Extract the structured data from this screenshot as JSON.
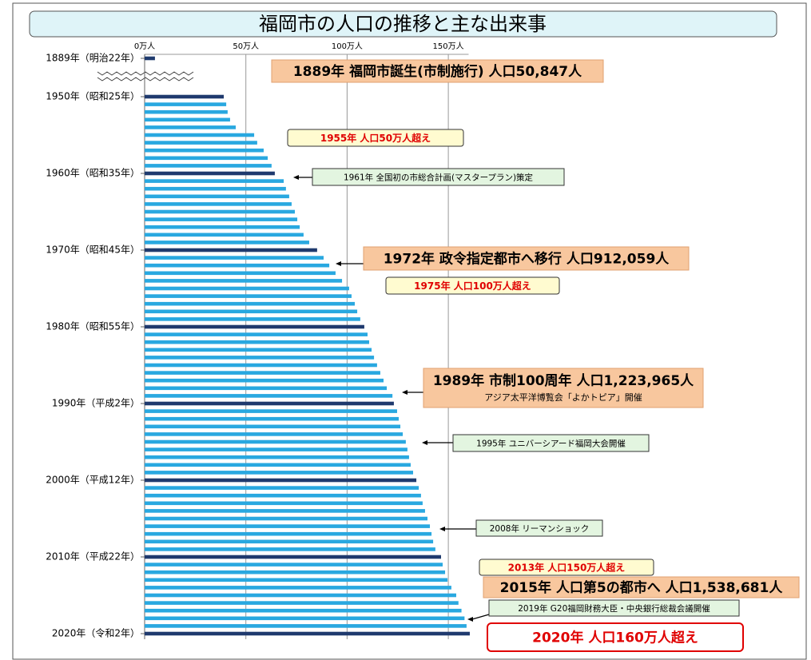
{
  "chart_data": {
    "type": "bar",
    "orientation": "horizontal",
    "title": "福岡市の人口の推移と主な出来事",
    "categories": [
      "1889年（明治22年）",
      "1950年（昭和25年）",
      null,
      null,
      null,
      null,
      null,
      null,
      null,
      null,
      null,
      "1960年（昭和35年）",
      null,
      null,
      null,
      null,
      null,
      null,
      null,
      null,
      null,
      "1970年（昭和45年）",
      null,
      null,
      null,
      null,
      null,
      null,
      null,
      null,
      null,
      "1980年（昭和55年）",
      null,
      null,
      null,
      null,
      null,
      null,
      null,
      null,
      null,
      "1990年（平成2年）",
      null,
      null,
      null,
      null,
      null,
      null,
      null,
      null,
      null,
      "2000年（平成12年）",
      null,
      null,
      null,
      null,
      null,
      null,
      null,
      null,
      null,
      "2010年（平成22年）",
      null,
      null,
      null,
      null,
      null,
      null,
      null,
      null,
      null,
      "2020年（令和2年）"
    ],
    "values": [
      5.1,
      39.1,
      40.3,
      41,
      42.2,
      45,
      54.1,
      55.6,
      58.8,
      60.8,
      62.7,
      64.3,
      68.7,
      69.8,
      71.4,
      72.6,
      74.2,
      75.4,
      76.6,
      78.5,
      81.3,
      85.2,
      88.4,
      91.2,
      94.3,
      97.5,
      101,
      102.2,
      103.8,
      105,
      106.5,
      108.5,
      110.1,
      110.9,
      112.1,
      113.3,
      114.8,
      116.4,
      118,
      119.6,
      122.4,
      123.1,
      124.7,
      125.5,
      126.3,
      127.5,
      129,
      129.8,
      130.6,
      131.4,
      132.6,
      134.2,
      135.4,
      136.5,
      137.3,
      138.5,
      139.7,
      140.9,
      141.7,
      142.5,
      143.6,
      146.4,
      147.2,
      148.4,
      149.6,
      151.5,
      153.9,
      155,
      156.5,
      158,
      159,
      160.6
    ],
    "color": "#29a8e0",
    "label_color": "#1f3a6e",
    "xlim": [
      0,
      160
    ],
    "xticks": [
      {
        "value": 0,
        "label": "0万人"
      },
      {
        "value": 50,
        "label": "50万人"
      },
      {
        "value": 100,
        "label": "100万人"
      },
      {
        "value": 150,
        "label": "150万人"
      }
    ],
    "grid": true,
    "annotations": [
      {
        "text": "1889年 福岡市誕生(市制施行) 人口50,847人"
      },
      {
        "text": "1955年 人口50万人超え"
      },
      {
        "text": "1961年 全国初の市総合計画(マスタープラン)策定"
      },
      {
        "text": "1972年 政令指定都市へ移行 人口912,059人"
      },
      {
        "text": "1975年 人口100万人超え"
      },
      {
        "text": "1989年 市制100周年 人口1,223,965人",
        "subtext": "アジア太平洋博覧会「よかトピア」開催"
      },
      {
        "text": "1995年 ユニバーシアード福岡大会開催"
      },
      {
        "text": "2008年 リーマンショック"
      },
      {
        "text": "2013年 人口150万人超え"
      },
      {
        "text": "2015年 人口第5の都市へ 人口1,538,681人"
      },
      {
        "text": "2019年 G20福岡財務大臣・中央銀行総裁会議開催"
      },
      {
        "text": "2020年 人口160万人超え"
      }
    ]
  }
}
